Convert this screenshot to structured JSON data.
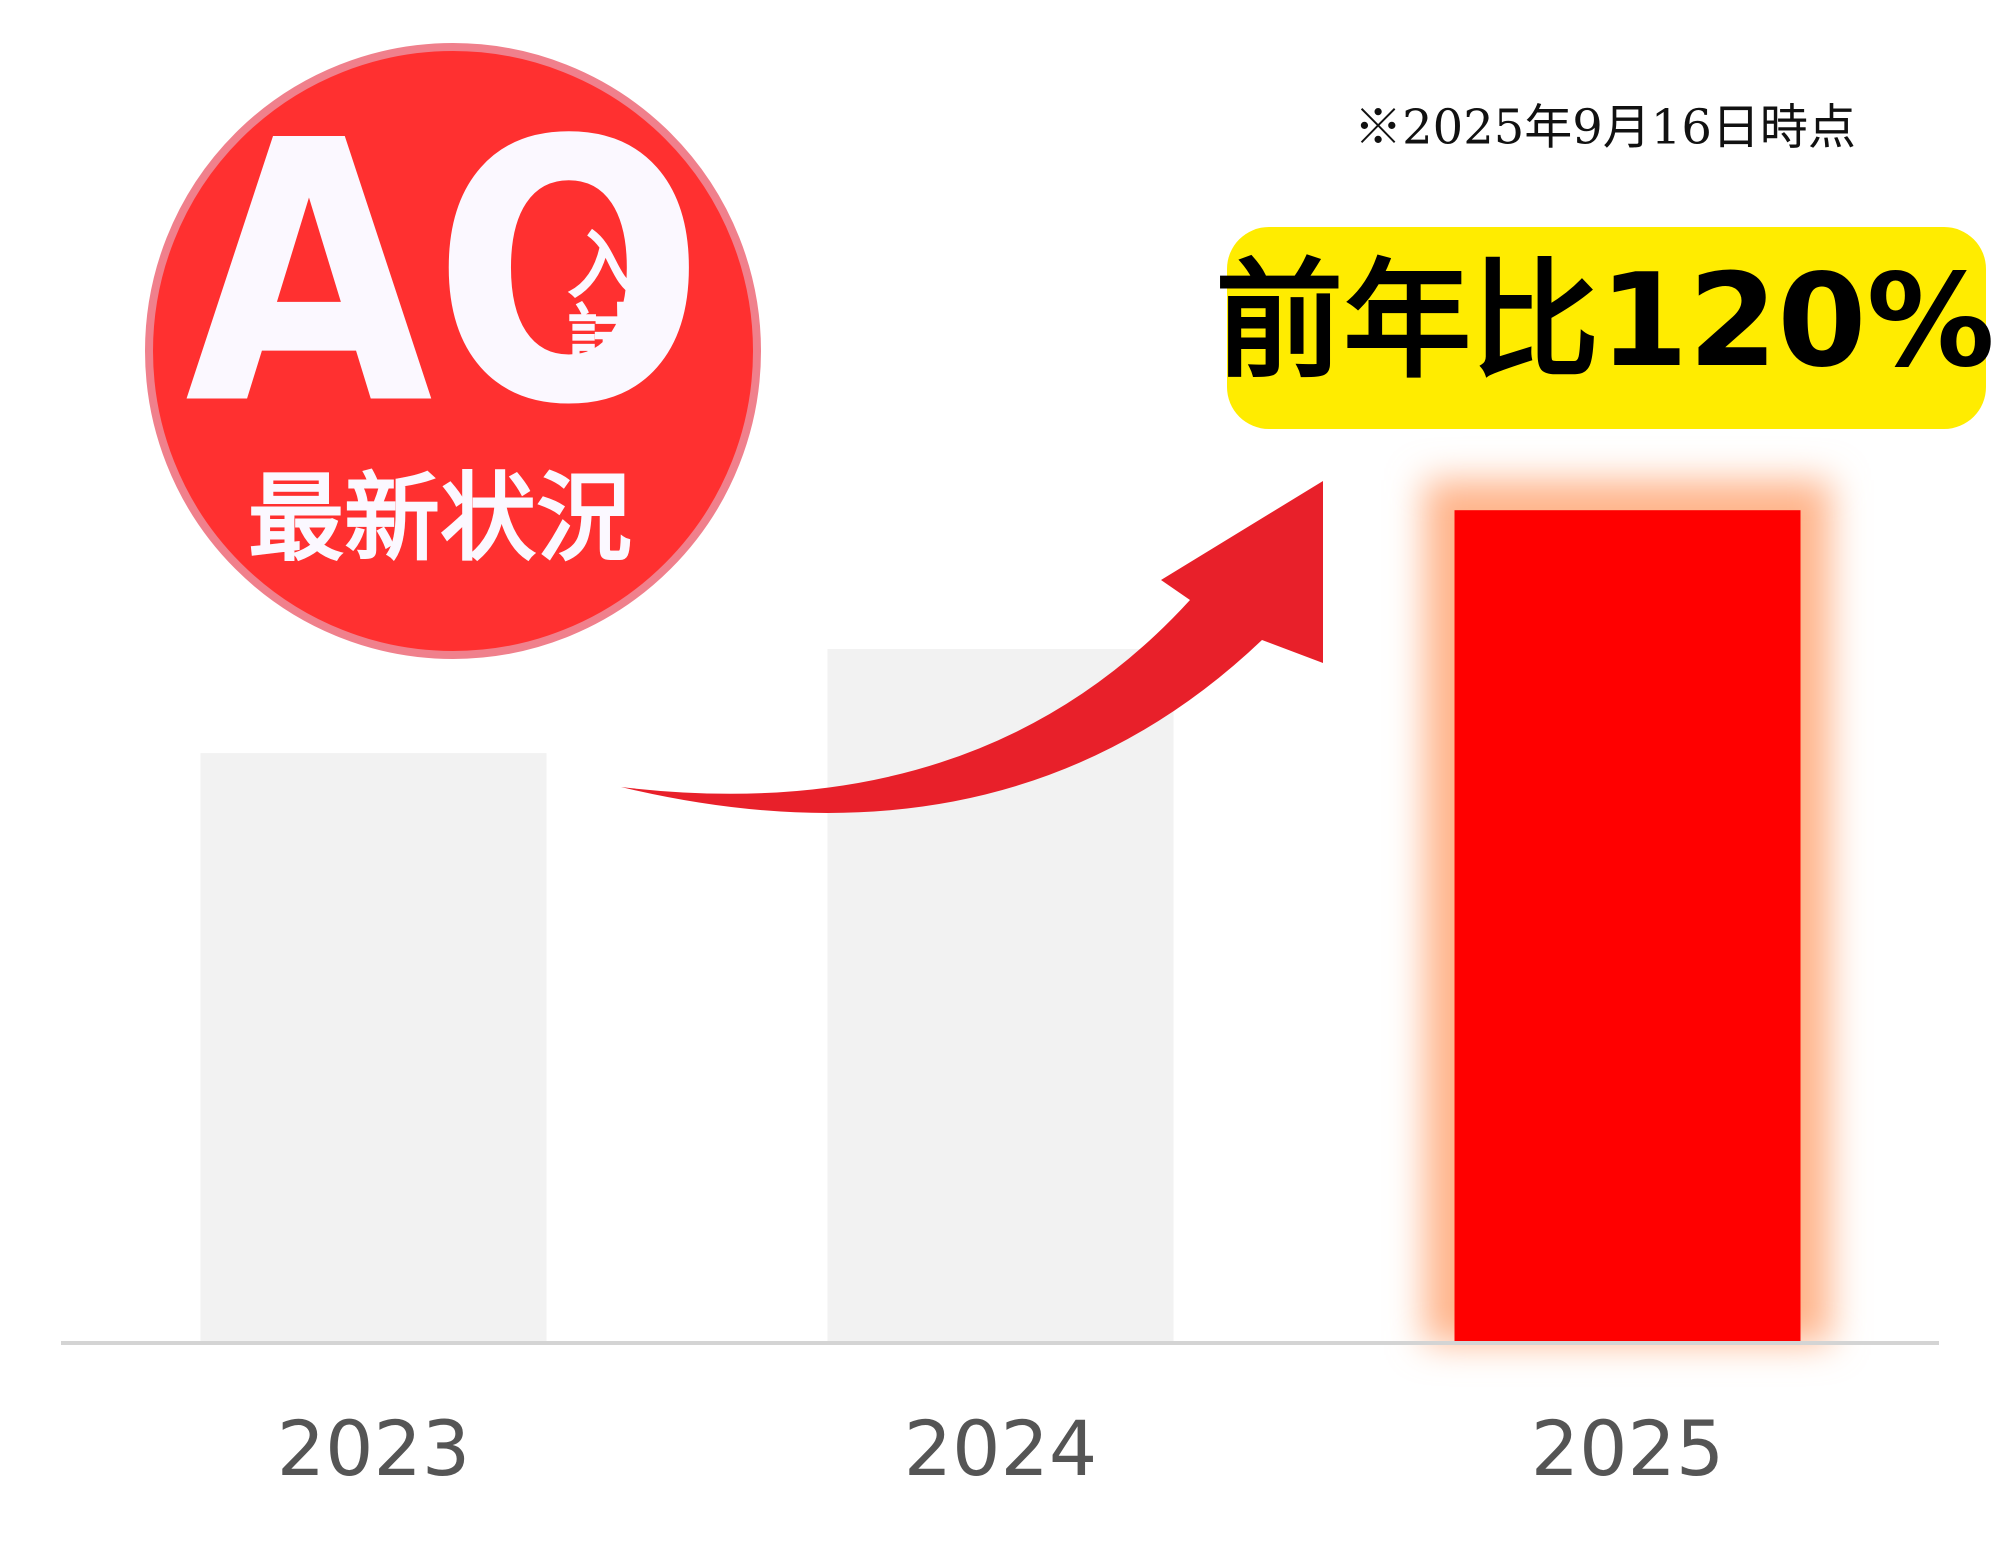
{
  "chart_data": {
    "type": "bar",
    "note": "※2025年9月16日時点",
    "callout": "前年比120%",
    "badge": {
      "title": "AO",
      "tag": "入試",
      "subtitle": "最新状況"
    },
    "categories": [
      "2023",
      "2024",
      "2025"
    ],
    "values": [
      85,
      100,
      120
    ],
    "colors": [
      "#f2f2f2",
      "#f2f2f2",
      "#ff0000"
    ],
    "ylim": [
      0,
      150
    ]
  }
}
